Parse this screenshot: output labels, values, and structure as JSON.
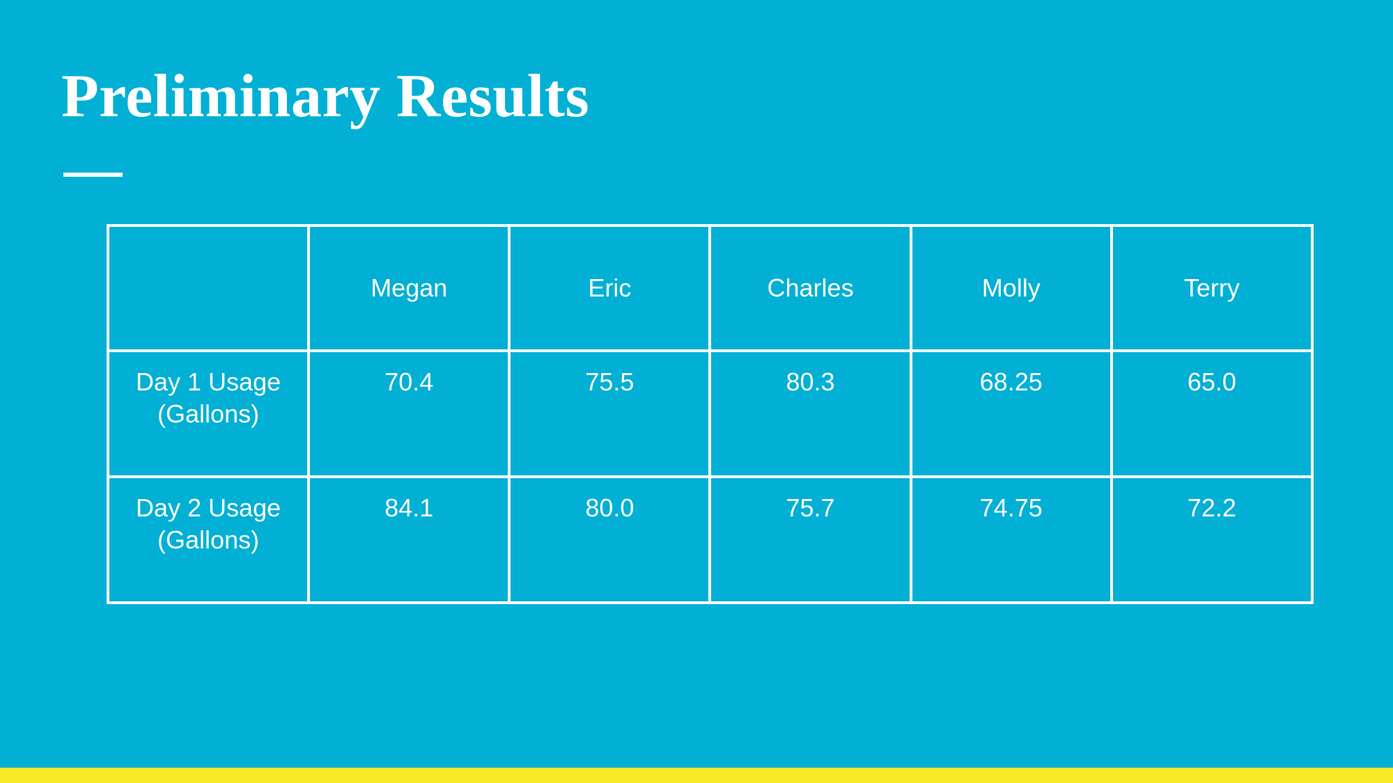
{
  "title": "Preliminary Results",
  "table": {
    "header": [
      "Megan",
      "Eric",
      "Charles",
      "Molly",
      "Terry"
    ],
    "rows": [
      [
        "Day 1 Usage (Gallons)",
        "70.4",
        "75.5",
        "80.3",
        "68.25",
        "65.0"
      ],
      [
        "Day 2 Usage (Gallons)",
        "84.1",
        "80.0",
        "75.7",
        "74.75",
        "72.2"
      ]
    ]
  }
}
